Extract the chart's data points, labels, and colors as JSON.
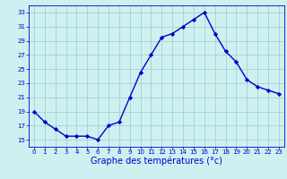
{
  "hours": [
    0,
    1,
    2,
    3,
    4,
    5,
    6,
    7,
    8,
    9,
    10,
    11,
    12,
    13,
    14,
    15,
    16,
    17,
    18,
    19,
    20,
    21,
    22,
    23
  ],
  "temperatures": [
    19,
    17.5,
    16.5,
    15.5,
    15.5,
    15.5,
    15,
    17,
    17.5,
    21,
    24.5,
    27,
    29.5,
    30,
    31,
    32,
    33,
    30,
    27.5,
    26,
    23.5,
    22.5,
    22,
    21.5
  ],
  "line_color": "#0000cc",
  "marker": "D",
  "marker_size": 2.2,
  "bg_color": "#cff0f0",
  "grid_color": "#99cccc",
  "xlabel": "Graphe des températures (°c)",
  "xlabel_color": "#0000cc",
  "xlabel_fontsize": 7,
  "tick_color": "#0000cc",
  "tick_fontsize": 5,
  "ylim": [
    14,
    34
  ],
  "yticks": [
    15,
    17,
    19,
    21,
    23,
    25,
    27,
    29,
    31,
    33
  ],
  "xticks": [
    0,
    1,
    2,
    3,
    4,
    5,
    6,
    7,
    8,
    9,
    10,
    11,
    12,
    13,
    14,
    15,
    16,
    17,
    18,
    19,
    20,
    21,
    22,
    23
  ],
  "spine_color": "#0000cc",
  "linewidth": 1.0
}
